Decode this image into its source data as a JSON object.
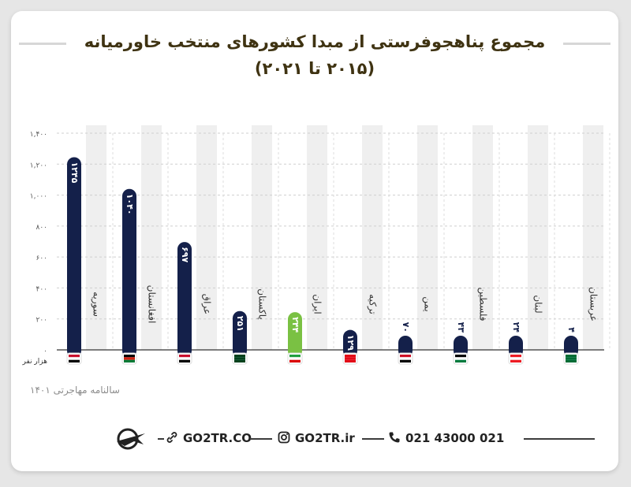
{
  "title_line1": "مجموع پناهجوفرستی از مبدا کشورهای منتخب خاورمیانه",
  "title_line2": "(۲۰۱۵ تا ۲۰۲۱)",
  "unit_label": "هزار نفر",
  "source": "سالنامه مهاجرتی ۱۴۰۱",
  "footer": {
    "website": "GO2TR.CO",
    "instagram": "GO2TR.ir",
    "phone": "021 43000 021"
  },
  "colors": {
    "bar_default": "#14204a",
    "bar_highlight": "#7ac143",
    "title": "#3f3312",
    "column_bg": "#efefef"
  },
  "chart_data": {
    "type": "bar",
    "ylim": [
      0,
      1400
    ],
    "yticks": [
      0,
      200,
      400,
      600,
      800,
      1000,
      1200,
      1400
    ],
    "ytick_labels": [
      "۰",
      "۲۰۰",
      "۴۰۰",
      "۶۰۰",
      "۸۰۰",
      "۱,۰۰۰",
      "۱,۲۰۰",
      "۱,۴۰۰"
    ],
    "grid": true,
    "categories": [
      "سوریه",
      "افغانستان",
      "عراق",
      "پاکستان",
      "ایران",
      "ترکیه",
      "یمن",
      "فلسطین",
      "لبنان",
      "عربستان"
    ],
    "values": [
      1245,
      1040,
      697,
      251,
      244,
      129,
      70,
      43,
      24,
      4
    ],
    "value_labels": [
      "۱۲۴۵",
      "۱۰۴۰",
      "۶۹۷",
      "۲۵۱",
      "۲۴۴",
      "۱۲۹",
      "۷۰",
      "۴۳",
      "۲۴",
      "۴"
    ],
    "highlight_index": 4,
    "flag_icons": [
      "syria-flag-icon",
      "afghanistan-flag-icon",
      "iraq-flag-icon",
      "pakistan-flag-icon",
      "iran-flag-icon",
      "turkey-flag-icon",
      "yemen-flag-icon",
      "palestine-flag-icon",
      "lebanon-flag-icon",
      "saudi-arabia-flag-icon"
    ]
  }
}
